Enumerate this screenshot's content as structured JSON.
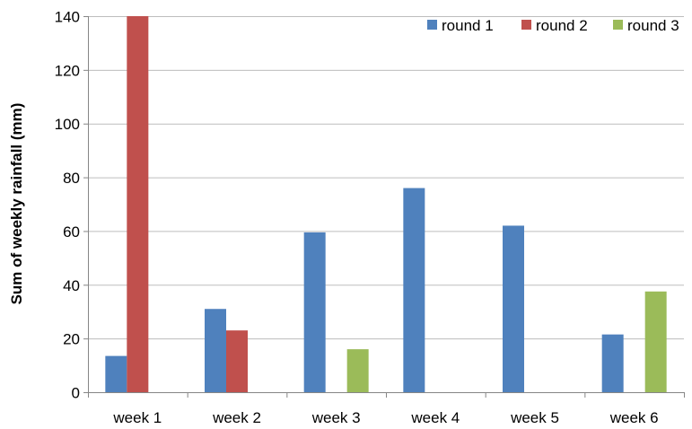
{
  "chart_data": {
    "type": "bar",
    "title": "",
    "xlabel": "",
    "ylabel": "Sum of weekly rainfall (mm)",
    "ylim": [
      0,
      140
    ],
    "yticks": [
      0,
      20,
      40,
      60,
      80,
      100,
      120,
      140
    ],
    "grid": true,
    "legend_position": "top-right",
    "categories": [
      "week 1",
      "week 2",
      "week 3",
      "week 4",
      "week 5",
      "week 6"
    ],
    "series": [
      {
        "name": "round 1",
        "color": "#4F81BD",
        "values": [
          13.5,
          31,
          59.5,
          76,
          62,
          21.5
        ]
      },
      {
        "name": "round 2",
        "color": "#C0504D",
        "values": [
          140,
          23,
          null,
          null,
          null,
          null
        ]
      },
      {
        "name": "round 3",
        "color": "#9BBB59",
        "values": [
          null,
          null,
          16,
          null,
          null,
          37.5
        ]
      }
    ]
  }
}
